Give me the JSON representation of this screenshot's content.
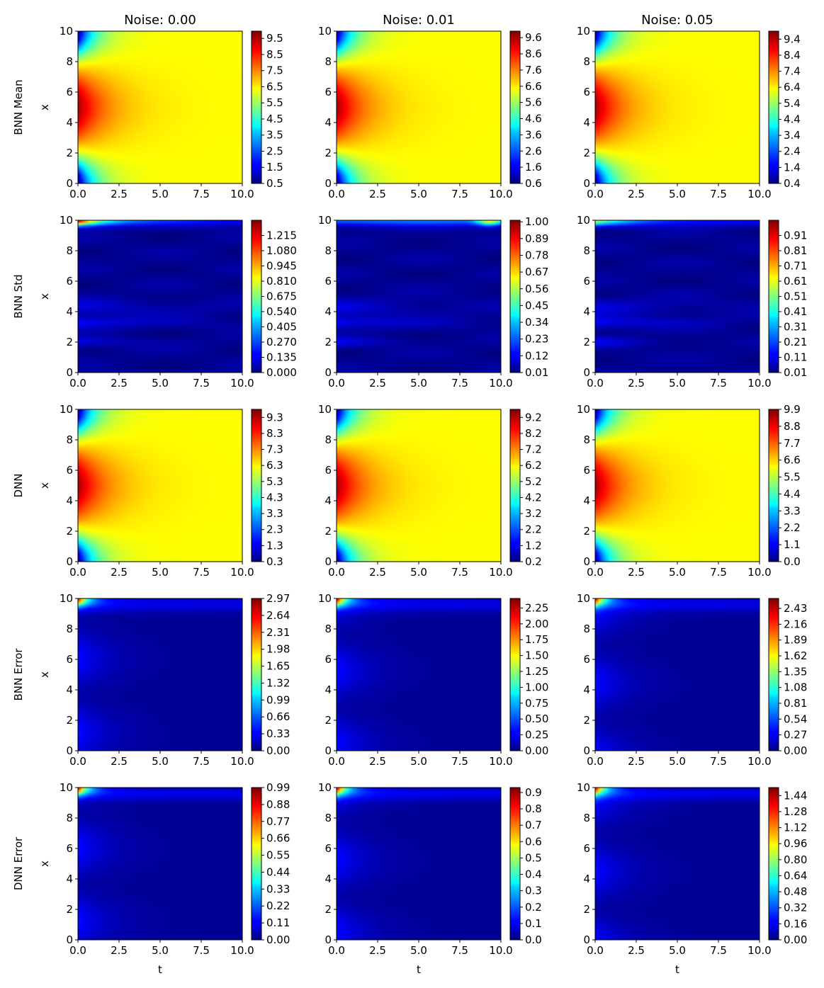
{
  "chart_data": {
    "type": "heatmap",
    "colormap": "jet",
    "column_titles": [
      "Noise: 0.00",
      "Noise: 0.01",
      "Noise: 0.05"
    ],
    "row_labels": [
      "BNN Mean",
      "BNN Std",
      "DNN",
      "BNN Error",
      "DNN Error"
    ],
    "xlabel": "t",
    "ylabel": "x",
    "xlim": [
      0,
      10
    ],
    "ylim": [
      0,
      10
    ],
    "x_ticks": [
      "0.0",
      "2.5",
      "5.0",
      "7.5",
      "10.0"
    ],
    "y_ticks": [
      "0",
      "2",
      "4",
      "6",
      "8",
      "10"
    ],
    "panels": [
      [
        {
          "field": "mean",
          "colorbar_range": [
            0.5,
            9.95
          ],
          "colorbar_ticks": [
            "0.5",
            "1.5",
            "2.5",
            "3.5",
            "4.5",
            "5.5",
            "6.5",
            "7.5",
            "8.5",
            "9.5"
          ]
        },
        {
          "field": "mean",
          "colorbar_range": [
            0.6,
            10.0
          ],
          "colorbar_ticks": [
            "0.6",
            "1.6",
            "2.6",
            "3.6",
            "4.6",
            "5.6",
            "6.6",
            "7.6",
            "8.6",
            "9.6"
          ]
        },
        {
          "field": "mean",
          "colorbar_range": [
            0.4,
            9.9
          ],
          "colorbar_ticks": [
            "0.4",
            "1.4",
            "2.4",
            "3.4",
            "4.4",
            "5.4",
            "6.4",
            "7.4",
            "8.4",
            "9.4"
          ]
        }
      ],
      [
        {
          "field": "std",
          "colorbar_range": [
            0.0,
            1.35
          ],
          "colorbar_ticks": [
            "0.000",
            "0.135",
            "0.270",
            "0.405",
            "0.540",
            "0.675",
            "0.810",
            "0.945",
            "1.080",
            "1.215"
          ]
        },
        {
          "field": "std",
          "colorbar_range": [
            0.01,
            1.01
          ],
          "colorbar_ticks": [
            "0.01",
            "0.12",
            "0.23",
            "0.34",
            "0.45",
            "0.56",
            "0.67",
            "0.78",
            "0.89",
            "1.00"
          ]
        },
        {
          "field": "std",
          "colorbar_range": [
            0.01,
            1.01
          ],
          "colorbar_ticks": [
            "0.01",
            "0.11",
            "0.21",
            "0.31",
            "0.41",
            "0.51",
            "0.61",
            "0.71",
            "0.81",
            "0.91"
          ]
        }
      ],
      [
        {
          "field": "mean",
          "colorbar_range": [
            0.3,
            9.8
          ],
          "colorbar_ticks": [
            "0.3",
            "1.3",
            "2.3",
            "3.3",
            "4.3",
            "5.3",
            "6.3",
            "7.3",
            "8.3",
            "9.3"
          ]
        },
        {
          "field": "mean",
          "colorbar_range": [
            0.2,
            9.7
          ],
          "colorbar_ticks": [
            "0.2",
            "1.2",
            "2.2",
            "3.2",
            "4.2",
            "5.2",
            "6.2",
            "7.2",
            "8.2",
            "9.2"
          ]
        },
        {
          "field": "mean",
          "colorbar_range": [
            0.0,
            9.9
          ],
          "colorbar_ticks": [
            "0.0",
            "1.1",
            "2.2",
            "3.3",
            "4.4",
            "5.5",
            "6.6",
            "7.7",
            "8.8",
            "9.9"
          ]
        }
      ],
      [
        {
          "field": "err",
          "colorbar_range": [
            0.0,
            2.97
          ],
          "colorbar_ticks": [
            "0.00",
            "0.33",
            "0.66",
            "0.99",
            "1.32",
            "1.65",
            "1.98",
            "2.31",
            "2.64",
            "2.97"
          ]
        },
        {
          "field": "err",
          "colorbar_range": [
            0.0,
            2.4
          ],
          "colorbar_ticks": [
            "0.00",
            "0.25",
            "0.50",
            "0.75",
            "1.00",
            "1.25",
            "1.50",
            "1.75",
            "2.00",
            "2.25"
          ]
        },
        {
          "field": "err",
          "colorbar_range": [
            0.0,
            2.6
          ],
          "colorbar_ticks": [
            "0.00",
            "0.27",
            "0.54",
            "0.81",
            "1.08",
            "1.35",
            "1.62",
            "1.89",
            "2.16",
            "2.43"
          ]
        }
      ],
      [
        {
          "field": "err",
          "colorbar_range": [
            0.0,
            0.99
          ],
          "colorbar_ticks": [
            "0.00",
            "0.11",
            "0.22",
            "0.33",
            "0.44",
            "0.55",
            "0.66",
            "0.77",
            "0.88",
            "0.99"
          ]
        },
        {
          "field": "err",
          "colorbar_range": [
            0.0,
            0.93
          ],
          "colorbar_ticks": [
            "0.0",
            "0.1",
            "0.2",
            "0.3",
            "0.4",
            "0.5",
            "0.6",
            "0.7",
            "0.8",
            "0.9"
          ]
        },
        {
          "field": "err",
          "colorbar_range": [
            0.0,
            1.52
          ],
          "colorbar_ticks": [
            "0.00",
            "0.16",
            "0.32",
            "0.48",
            "0.64",
            "0.80",
            "0.96",
            "1.12",
            "1.28",
            "1.44"
          ]
        }
      ]
    ]
  }
}
